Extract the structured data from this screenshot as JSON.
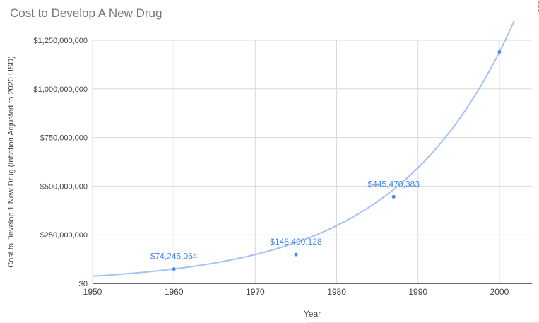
{
  "chart_data": {
    "type": "scatter",
    "title": "Cost to Develop A New Drug",
    "xlabel": "Year",
    "ylabel": "Cost to Develop 1 New Drug (Inflation Adjusted to 2020 USD)",
    "xlim": [
      1950,
      2004
    ],
    "ylim": [
      0,
      1250000000
    ],
    "grid": true,
    "legend_position": "none",
    "x_ticks": [
      {
        "value": 1950,
        "label": "1950"
      },
      {
        "value": 1960,
        "label": "1960"
      },
      {
        "value": 1970,
        "label": "1970"
      },
      {
        "value": 1980,
        "label": "1980"
      },
      {
        "value": 1990,
        "label": "1990"
      },
      {
        "value": 2000,
        "label": "2000"
      }
    ],
    "y_ticks": [
      {
        "value": 0,
        "label": "$0"
      },
      {
        "value": 250000000,
        "label": "$250,000,000"
      },
      {
        "value": 500000000,
        "label": "$500,000,000"
      },
      {
        "value": 750000000,
        "label": "$750,000,000"
      },
      {
        "value": 1000000000,
        "label": "$1,000,000,000"
      },
      {
        "value": 1250000000,
        "label": "$1,250,000,000"
      }
    ],
    "series": [
      {
        "color": "#4285f4",
        "points": [
          {
            "x": 1960,
            "y": 74245064,
            "label": "$74,245,064"
          },
          {
            "x": 1975,
            "y": 148490128,
            "label": "$148,490,128"
          },
          {
            "x": 1987,
            "y": 445470383,
            "label": "$445,470,383"
          },
          {
            "x": 2000,
            "y": 1190000000,
            "label": ""
          }
        ]
      }
    ],
    "trendline": {
      "type": "exponential",
      "color": "#a4c2f4",
      "width": 2
    }
  },
  "menu": {
    "icon": "vertical-three-dots"
  },
  "colors": {
    "background": "#ffffff",
    "title_text": "#757575",
    "axis_text": "#444444",
    "gridline": "#d9d9d9",
    "axis_line": "#333333",
    "point": "#4285f4",
    "data_label_text": "#4285f4",
    "trendline": "#a4c2f4",
    "menu_icon": "#9e9e9e"
  }
}
